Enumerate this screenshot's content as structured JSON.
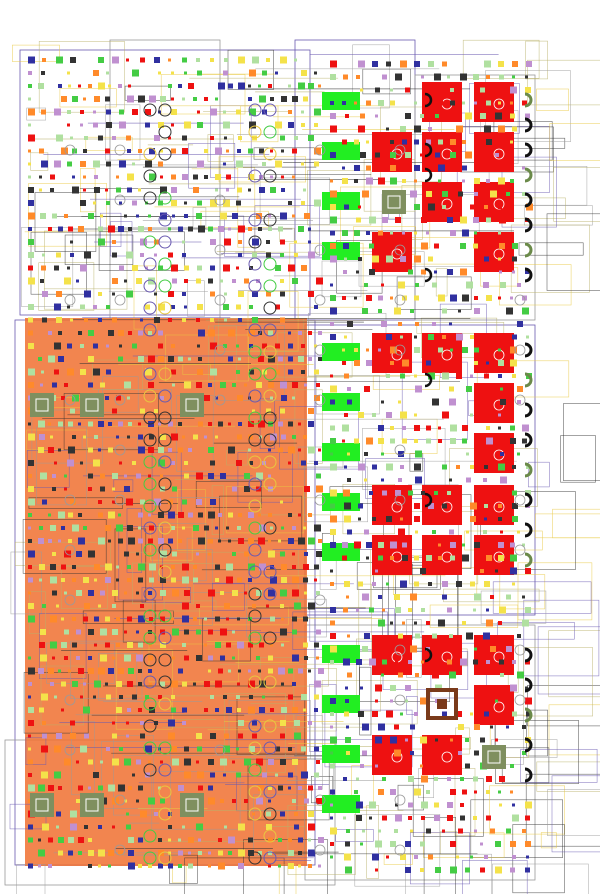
{
  "view": {
    "type": "circuit-layout",
    "background": "#ffffff"
  },
  "colors": {
    "highlight_region": "#f07030",
    "cell_fill": "#ee1111",
    "pad_green": "#22ee22",
    "trace_olive": "#b8b06a",
    "trace_gold": "#e8c840",
    "trace_gray": "#9a9a9a",
    "trace_purple": "#6a5ab0",
    "trace_dark": "#333333",
    "via_blue": "#3030a0",
    "via_green": "#44cc44",
    "via_orange": "#ff8a2a",
    "via_yellow": "#f4e24a",
    "macro_fill": "#7f8f5f",
    "macro_brown": "#7a3a1a",
    "arc_black": "#111111",
    "arc_green": "#6b8a4a"
  },
  "blocks": [
    {
      "id": "block-top-left",
      "label": ""
    },
    {
      "id": "block-top-right",
      "label": ""
    },
    {
      "id": "block-mid-right",
      "label": ""
    },
    {
      "id": "block-bottom-right",
      "label": ""
    },
    {
      "id": "block-highlighted",
      "label": ""
    }
  ],
  "icons": {
    "via": "via-marker",
    "arc": "pin-arc",
    "macro": "macro-cell"
  }
}
